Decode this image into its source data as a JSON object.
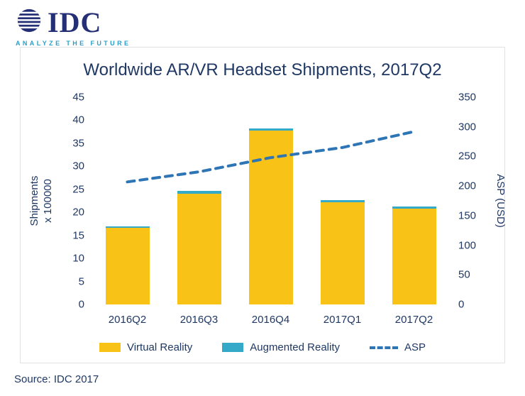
{
  "brand": {
    "name": "IDC",
    "tagline": "ANALYZE THE FUTURE"
  },
  "source": "Source: IDC 2017",
  "colors": {
    "navy_text": "#1F3864",
    "logo_navy": "#252F75",
    "tagline_teal": "#2B9FC6",
    "virtual_reality_bar": "#F9C216",
    "augmented_reality_bar": "#35AAC8",
    "asp_line": "#2E75B6"
  },
  "chart_data": {
    "type": "bar",
    "stacked": true,
    "grid": false,
    "legend_position": "bottom",
    "title": "Worldwide AR/VR Headset Shipments, 2017Q2",
    "categories": [
      "2016Q2",
      "2016Q3",
      "2016Q4",
      "2017Q1",
      "2017Q2"
    ],
    "series": [
      {
        "name": "Virtual Reality",
        "type": "bar",
        "axis": "left",
        "color": "#F9C216",
        "values": [
          16.6,
          24.1,
          37.8,
          22.2,
          20.8
        ]
      },
      {
        "name": "Augmented Reality",
        "type": "bar",
        "axis": "left",
        "color": "#35AAC8",
        "values": [
          0.4,
          0.5,
          0.4,
          0.4,
          0.4
        ]
      },
      {
        "name": "ASP",
        "type": "line",
        "axis": "right",
        "dashed": true,
        "color": "#2E75B6",
        "values": [
          207,
          224,
          248,
          265,
          292
        ]
      }
    ],
    "left_axis": {
      "label_line1": "Shipments",
      "label_line2": "x 100000",
      "min": 0,
      "max": 45,
      "step": 5
    },
    "right_axis": {
      "label": "ASP (USD)",
      "min": 0,
      "max": 350,
      "step": 50
    }
  }
}
